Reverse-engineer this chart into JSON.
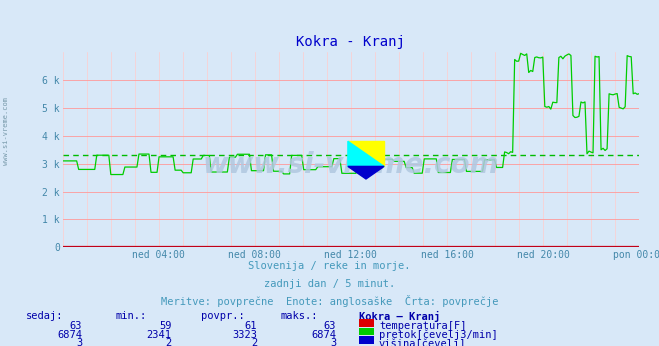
{
  "title": "Kokra - Kranj",
  "title_color": "#0000cc",
  "bg_color": "#d8e8f8",
  "grid_color_h": "#ff9999",
  "grid_color_v": "#ffcccc",
  "tick_color": "#4488aa",
  "xlabel_labels": [
    "ned 04:00",
    "ned 08:00",
    "ned 12:00",
    "ned 16:00",
    "ned 20:00",
    "pon 00:00"
  ],
  "yticks": [
    0,
    1000,
    2000,
    3000,
    4000,
    5000,
    6000
  ],
  "ytick_labels": [
    "0",
    "1 k",
    "2 k",
    "3 k",
    "4 k",
    "5 k",
    "6 k"
  ],
  "ymax": 7000,
  "ymin": 0,
  "avg_line_value": 3323,
  "avg_line_color": "#00bb00",
  "temp_color": "#dd0000",
  "flow_color": "#00cc00",
  "height_color": "#0000cc",
  "watermark_text": "www.si-vreme.com",
  "watermark_color": "#b0c8e0",
  "subtitle1": "Slovenija / reke in morje.",
  "subtitle2": "zadnji dan / 5 minut.",
  "subtitle3": "Meritve: povprečne  Enote: anglosaške  Črta: povprečje",
  "subtitle_color": "#4499bb",
  "table_headers": [
    "sedaj:",
    "min.:",
    "povpr.:",
    "maks.:",
    "Kokra – Kranj"
  ],
  "table_color": "#0000aa",
  "rows": [
    {
      "sedaj": "63",
      "min": "59",
      "povpr": "61",
      "maks": "63",
      "label": "temperatura[F]",
      "color": "#dd0000"
    },
    {
      "sedaj": "6874",
      "min": "2341",
      "povpr": "3323",
      "maks": "6874",
      "label": "pretok[čevelj3/min]",
      "color": "#00cc00"
    },
    {
      "sedaj": "3",
      "min": "2",
      "povpr": "2",
      "maks": "3",
      "label": "višina[čevelj]",
      "color": "#0000cc"
    }
  ],
  "n_points": 288,
  "xmin": 0,
  "xmax": 287,
  "arrow_color": "#cc0000",
  "left_label": "www.si-vreme.com",
  "left_label_color": "#7799aa"
}
